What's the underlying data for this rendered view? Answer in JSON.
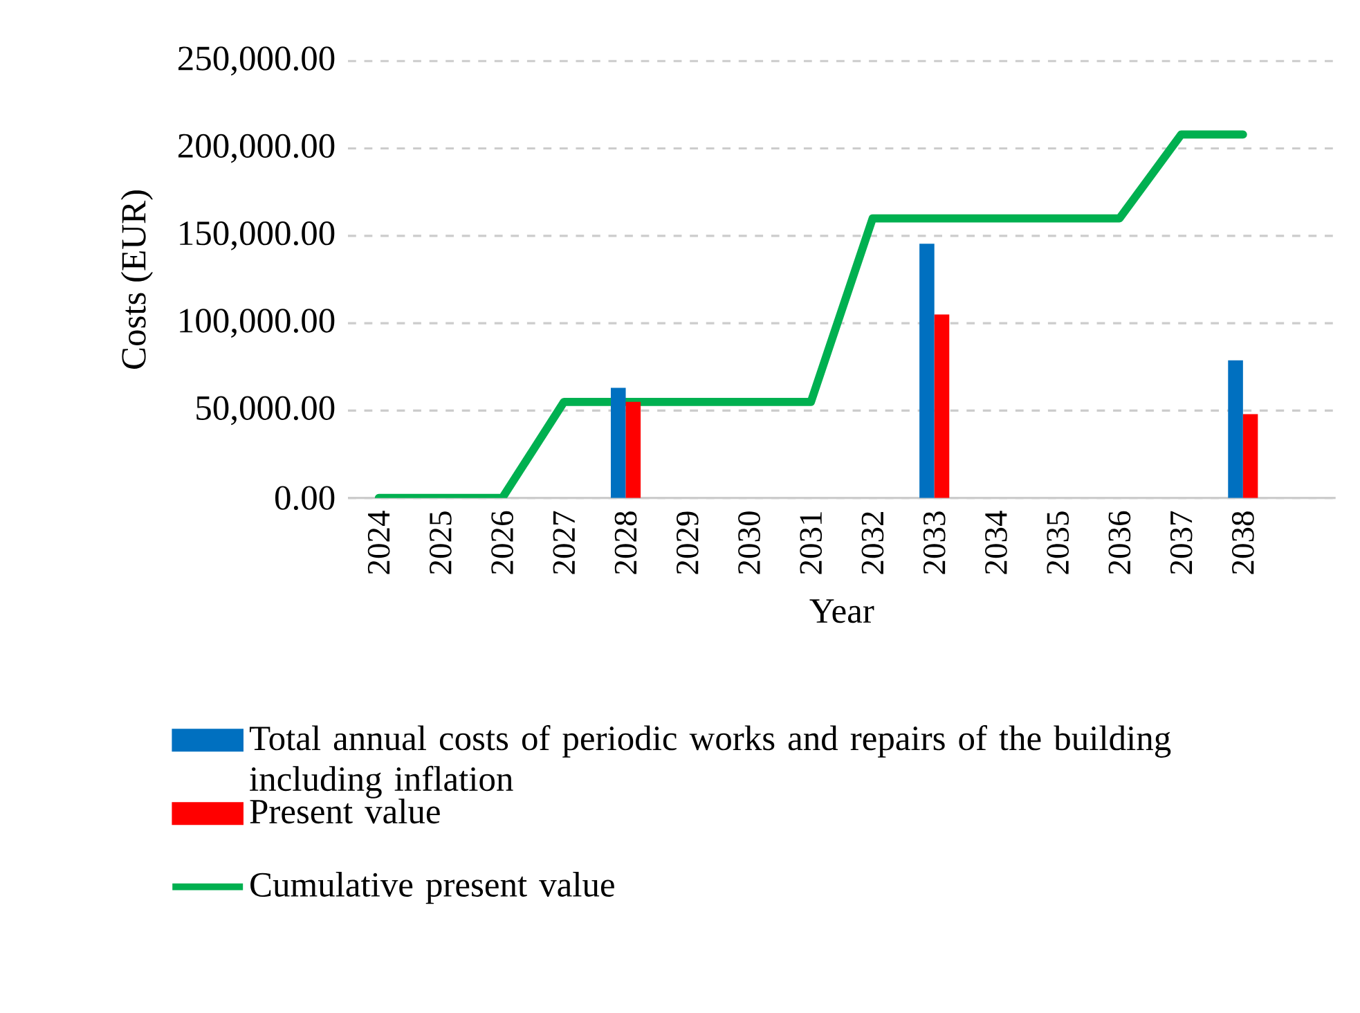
{
  "chart_data": {
    "type": "bar",
    "xlabel": "Year",
    "ylabel": "Costs (EUR)",
    "categories": [
      "2024",
      "2025",
      "2026",
      "2027",
      "2028",
      "2029",
      "2030",
      "2031",
      "2032",
      "2033",
      "2034",
      "2035",
      "2036",
      "2037",
      "2038"
    ],
    "series": [
      {
        "name": "Total annual costs of periodic works and repairs of the building including inflation",
        "color": "#0070c0",
        "values": [
          null,
          null,
          null,
          null,
          63000,
          null,
          null,
          null,
          null,
          145500,
          null,
          null,
          null,
          null,
          78800
        ]
      },
      {
        "name": "Present value",
        "color": "#ff0000",
        "values": [
          null,
          null,
          null,
          null,
          55000,
          null,
          null,
          null,
          null,
          105000,
          null,
          null,
          null,
          null,
          48000
        ]
      },
      {
        "name": "Cumulative present value",
        "type": "line",
        "color": "#00b050",
        "values": [
          0,
          0,
          0,
          55000,
          55000,
          55000,
          55000,
          55000,
          160000,
          160000,
          160000,
          160000,
          160000,
          208000,
          208000
        ]
      }
    ],
    "ylim": [
      0,
      250000
    ],
    "yticks": [
      {
        "value": 0,
        "label": "0.00"
      },
      {
        "value": 50000,
        "label": "50,000.00"
      },
      {
        "value": 100000,
        "label": "100,000.00"
      },
      {
        "value": 150000,
        "label": "150,000.00"
      },
      {
        "value": 200000,
        "label": "200,000.00"
      },
      {
        "value": 250000,
        "label": "250,000.00"
      }
    ],
    "grid": "y",
    "legend": "bottom"
  }
}
